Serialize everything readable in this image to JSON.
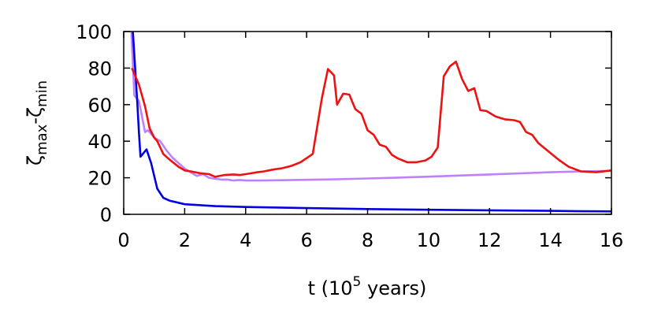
{
  "chart_data": {
    "type": "line",
    "xlabel": {
      "pre": "t (10",
      "sup": "5",
      "post": " years)"
    },
    "ylabel": {
      "z1": "ζ",
      "sub1": "max",
      "dash": "-",
      "z2": "ζ",
      "sub2": "min"
    },
    "xlim": [
      0,
      16
    ],
    "ylim": [
      0,
      100
    ],
    "xticks": [
      "0",
      "2",
      "4",
      "6",
      "8",
      "10",
      "12",
      "14",
      "16"
    ],
    "yticks": [
      "0",
      "20",
      "40",
      "60",
      "80",
      "100"
    ],
    "grid": false,
    "legend": "none",
    "series": [
      {
        "color": "#bf80ff",
        "x": [
          0.25,
          0.35,
          0.5,
          0.7,
          0.8,
          1.0,
          1.2,
          1.4,
          1.6,
          1.8,
          2.0,
          2.2,
          2.4,
          2.6,
          2.8,
          3.0,
          3.2,
          3.4,
          3.6,
          3.8,
          4.0,
          4.5,
          5.0,
          6.0,
          7.0,
          8.0,
          9.0,
          10.0,
          11.0,
          12.0,
          13.0,
          14.0,
          15.0,
          16.0
        ],
        "y": [
          100,
          65,
          62,
          45,
          46,
          42,
          40,
          35,
          31,
          28,
          25,
          23,
          21,
          22,
          20,
          19.5,
          19,
          19,
          18.5,
          18.8,
          18.5,
          18.5,
          18.6,
          18.9,
          19.2,
          19.6,
          20.1,
          20.6,
          21.2,
          21.8,
          22.4,
          23.0,
          23.5,
          23.8
        ]
      },
      {
        "color": "#0000e0",
        "x": [
          0.3,
          0.45,
          0.5,
          0.55,
          0.75,
          0.9,
          1.1,
          1.3,
          1.5,
          2.0,
          3.0,
          4.0,
          6.0,
          8.0,
          10.0,
          12.0,
          14.0,
          15.0,
          16.0
        ],
        "y": [
          100,
          60,
          45,
          31.5,
          35.5,
          28,
          14,
          9,
          7.5,
          5.5,
          4.5,
          4.0,
          3.4,
          2.9,
          2.5,
          2.2,
          1.9,
          1.7,
          1.6
        ]
      },
      {
        "color": "#ee1111",
        "x": [
          0.27,
          0.5,
          0.7,
          0.85,
          1.0,
          1.1,
          1.3,
          1.5,
          1.8,
          2.0,
          2.2,
          2.5,
          2.8,
          3.0,
          3.3,
          3.6,
          3.8,
          4.0,
          4.3,
          4.6,
          4.9,
          5.2,
          5.5,
          5.8,
          6.2,
          6.5,
          6.7,
          6.9,
          7.0,
          7.2,
          7.4,
          7.6,
          7.8,
          8.0,
          8.2,
          8.4,
          8.6,
          8.8,
          9.0,
          9.3,
          9.6,
          9.9,
          10.1,
          10.3,
          10.5,
          10.7,
          10.9,
          11.1,
          11.3,
          11.5,
          11.7,
          11.9,
          12.2,
          12.5,
          12.8,
          13.0,
          13.2,
          13.4,
          13.6,
          14.0,
          14.3,
          14.6,
          15.0,
          15.5,
          16.0
        ],
        "y": [
          80,
          71,
          59,
          47,
          42,
          40,
          33,
          30,
          26,
          24,
          23.5,
          22.5,
          22,
          20.5,
          21.5,
          21.8,
          21.5,
          22,
          22.8,
          23.5,
          24.5,
          25.2,
          26.5,
          28.5,
          33,
          63.5,
          79.5,
          76,
          60,
          66,
          65.5,
          57.5,
          55,
          46,
          43.5,
          38,
          37,
          32.5,
          30.5,
          28.5,
          28.5,
          29.5,
          31.5,
          36.5,
          75.5,
          81,
          83.5,
          74,
          67.5,
          69,
          57,
          56.5,
          53.5,
          52,
          51.5,
          50.5,
          45,
          43.5,
          39,
          33.5,
          29.5,
          26,
          23.5,
          23,
          24
        ]
      }
    ]
  }
}
